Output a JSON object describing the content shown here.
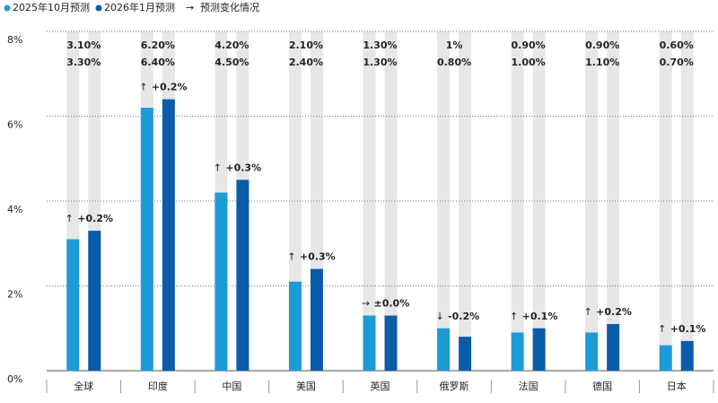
{
  "chart_data": {
    "type": "bar",
    "categories": [
      "全球",
      "印度",
      "中国",
      "美国",
      "英国",
      "俄罗斯",
      "法国",
      "德国",
      "日本"
    ],
    "series": [
      {
        "name": "2025年10月预测",
        "color": "#1e9bd7",
        "values": [
          3.1,
          6.2,
          4.2,
          2.1,
          1.3,
          1,
          0.9,
          0.9,
          0.6
        ],
        "value_labels": [
          "3.10%",
          "6.20%",
          "4.20%",
          "2.10%",
          "1.30%",
          "1%",
          "0.90%",
          "0.90%",
          "0.60%"
        ]
      },
      {
        "name": "2026年1月预测",
        "color": "#0b5ca8",
        "values": [
          3.3,
          6.4,
          4.5,
          2.4,
          1.3,
          0.8,
          1.0,
          1.1,
          0.7
        ],
        "value_labels": [
          "3.30%",
          "6.40%",
          "4.50%",
          "2.40%",
          "1.30%",
          "0.80%",
          "1.00%",
          "1.10%",
          "0.70%"
        ]
      }
    ],
    "change_legend": {
      "symbol": "→",
      "label": "预测变化情况"
    },
    "change_arrows": [
      "↑",
      "↑",
      "↑",
      "↑",
      "→",
      "↓",
      "↑",
      "↑",
      "↑"
    ],
    "changes": [
      "+0.2%",
      "+0.2%",
      "+0.3%",
      "+0.3%",
      "±0.0%",
      "-0.2%",
      "+0.1%",
      "+0.2%",
      "+0.1%"
    ],
    "ylim": [
      0,
      8
    ],
    "yticks": [
      {
        "value": 0,
        "label": "0%"
      },
      {
        "value": 2,
        "label": "2%"
      },
      {
        "value": 4,
        "label": "4%"
      },
      {
        "value": 6,
        "label": "6%"
      },
      {
        "value": 8,
        "label": "8%"
      }
    ],
    "grid": true,
    "background_color": "#e6e7e9"
  }
}
